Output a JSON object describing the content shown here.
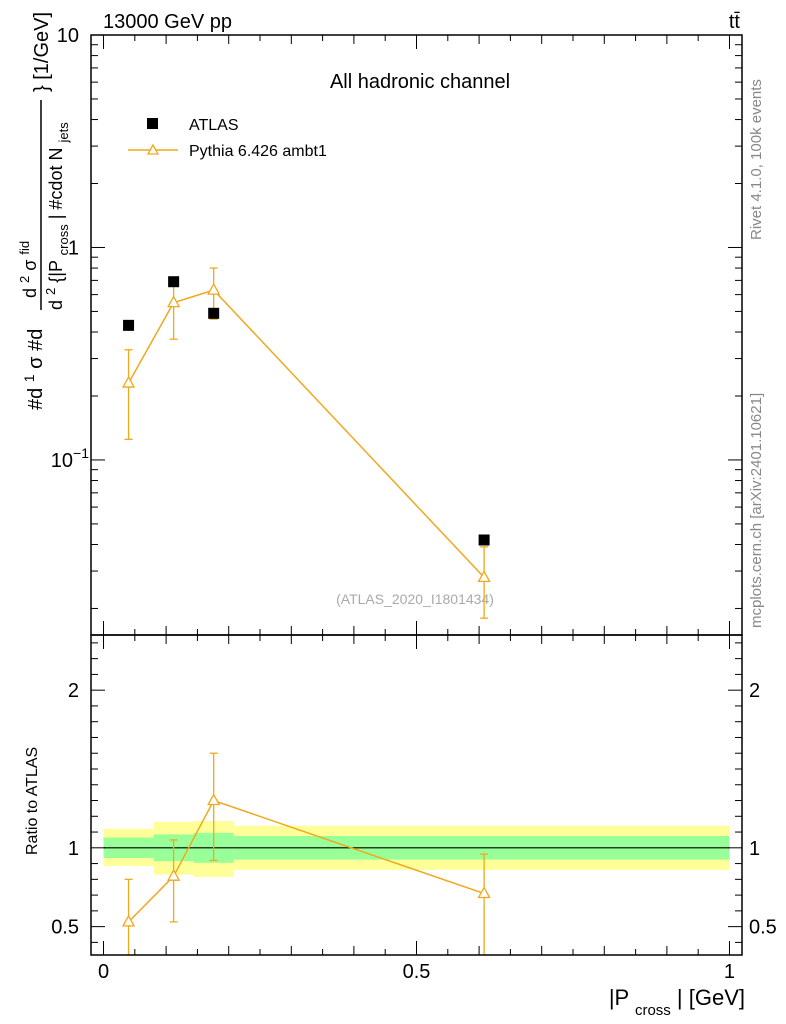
{
  "header": {
    "energy_label": "13000 GeV pp",
    "process_label": "tt̄"
  },
  "side_labels": {
    "rivet": "Rivet 4.1.0,  100k events",
    "mcplots": "mcplots.cern.ch [arXiv:2401.10621]"
  },
  "chart_data": [
    {
      "type": "scatter",
      "panel": "main",
      "title": "All hadronic channel",
      "watermark": "(ATLAS_2020_I1801434)",
      "ylabel_parts": {
        "num": "#d",
        "frac1": "1",
        "sigma": "σ",
        "d2": "d",
        "sup2": "2",
        "sigfid": "σ",
        "fid": "fid",
        "den": "{|P",
        "cross": "cross",
        "cdot": "| #cdot N",
        "jets": "jets",
        "unit": "} [1/GeV]"
      },
      "yscale": "log",
      "ylim": [
        0.015,
        10
      ],
      "xlim": [
        -0.02,
        1.02
      ],
      "yticks": [
        {
          "value": 0.1,
          "label": "10",
          "exp": "−1"
        },
        {
          "value": 1,
          "label": "1",
          "exp": ""
        },
        {
          "value": 10,
          "label": "10",
          "exp": ""
        }
      ],
      "legend": {
        "position": "top-left",
        "entries": [
          "ATLAS",
          "Pythia 6.426 ambt1"
        ]
      },
      "series": [
        {
          "name": "ATLAS",
          "color": "#000000",
          "marker": "square",
          "x": [
            0.04,
            0.112,
            0.176,
            0.608
          ],
          "y": [
            0.43,
            0.69,
            0.49,
            0.042
          ]
        },
        {
          "name": "Pythia 6.426 ambt1",
          "color": "#f0a81c",
          "marker": "triangle-open",
          "x": [
            0.04,
            0.112,
            0.176,
            0.608
          ],
          "y": [
            0.23,
            0.55,
            0.63,
            0.028
          ],
          "yerr_low": [
            0.125,
            0.37,
            0.46,
            0.018
          ],
          "yerr_high": [
            0.33,
            0.68,
            0.8,
            0.039
          ]
        }
      ]
    },
    {
      "type": "line",
      "panel": "ratio",
      "ylabel": "Ratio to ATLAS",
      "xlabel_parts": {
        "pre": "|P",
        "sub": "cross",
        "post": "| [GeV]"
      },
      "xlim": [
        -0.02,
        1.02
      ],
      "ylim": [
        0.32,
        2.35
      ],
      "xticks": [
        {
          "value": 0,
          "label": "0"
        },
        {
          "value": 0.5,
          "label": "0.5"
        },
        {
          "value": 1,
          "label": "1"
        }
      ],
      "yticks": [
        {
          "value": 0.5,
          "label": "0.5"
        },
        {
          "value": 1,
          "label": "1"
        },
        {
          "value": 2,
          "label": "2"
        }
      ],
      "bands": [
        {
          "x0": 0.0,
          "x1": 0.08,
          "green": [
            0.935,
            1.065
          ],
          "yellow": [
            0.885,
            1.12
          ]
        },
        {
          "x0": 0.08,
          "x1": 0.144,
          "green": [
            0.915,
            1.085
          ],
          "yellow": [
            0.83,
            1.165
          ]
        },
        {
          "x0": 0.144,
          "x1": 0.208,
          "green": [
            0.905,
            1.095
          ],
          "yellow": [
            0.815,
            1.17
          ]
        },
        {
          "x0": 0.208,
          "x1": 1.0,
          "green": [
            0.925,
            1.075
          ],
          "yellow": [
            0.86,
            1.14
          ]
        }
      ],
      "series": [
        {
          "name": "Pythia 6.426 ambt1",
          "color": "#f0a81c",
          "marker": "triangle-open",
          "x": [
            0.04,
            0.112,
            0.176,
            0.608
          ],
          "y": [
            0.53,
            0.82,
            1.3,
            0.71
          ],
          "yerr_low": [
            0.3,
            0.53,
            0.92,
            0.3
          ],
          "yerr_high": [
            0.8,
            1.05,
            1.6,
            0.96
          ]
        }
      ]
    }
  ]
}
